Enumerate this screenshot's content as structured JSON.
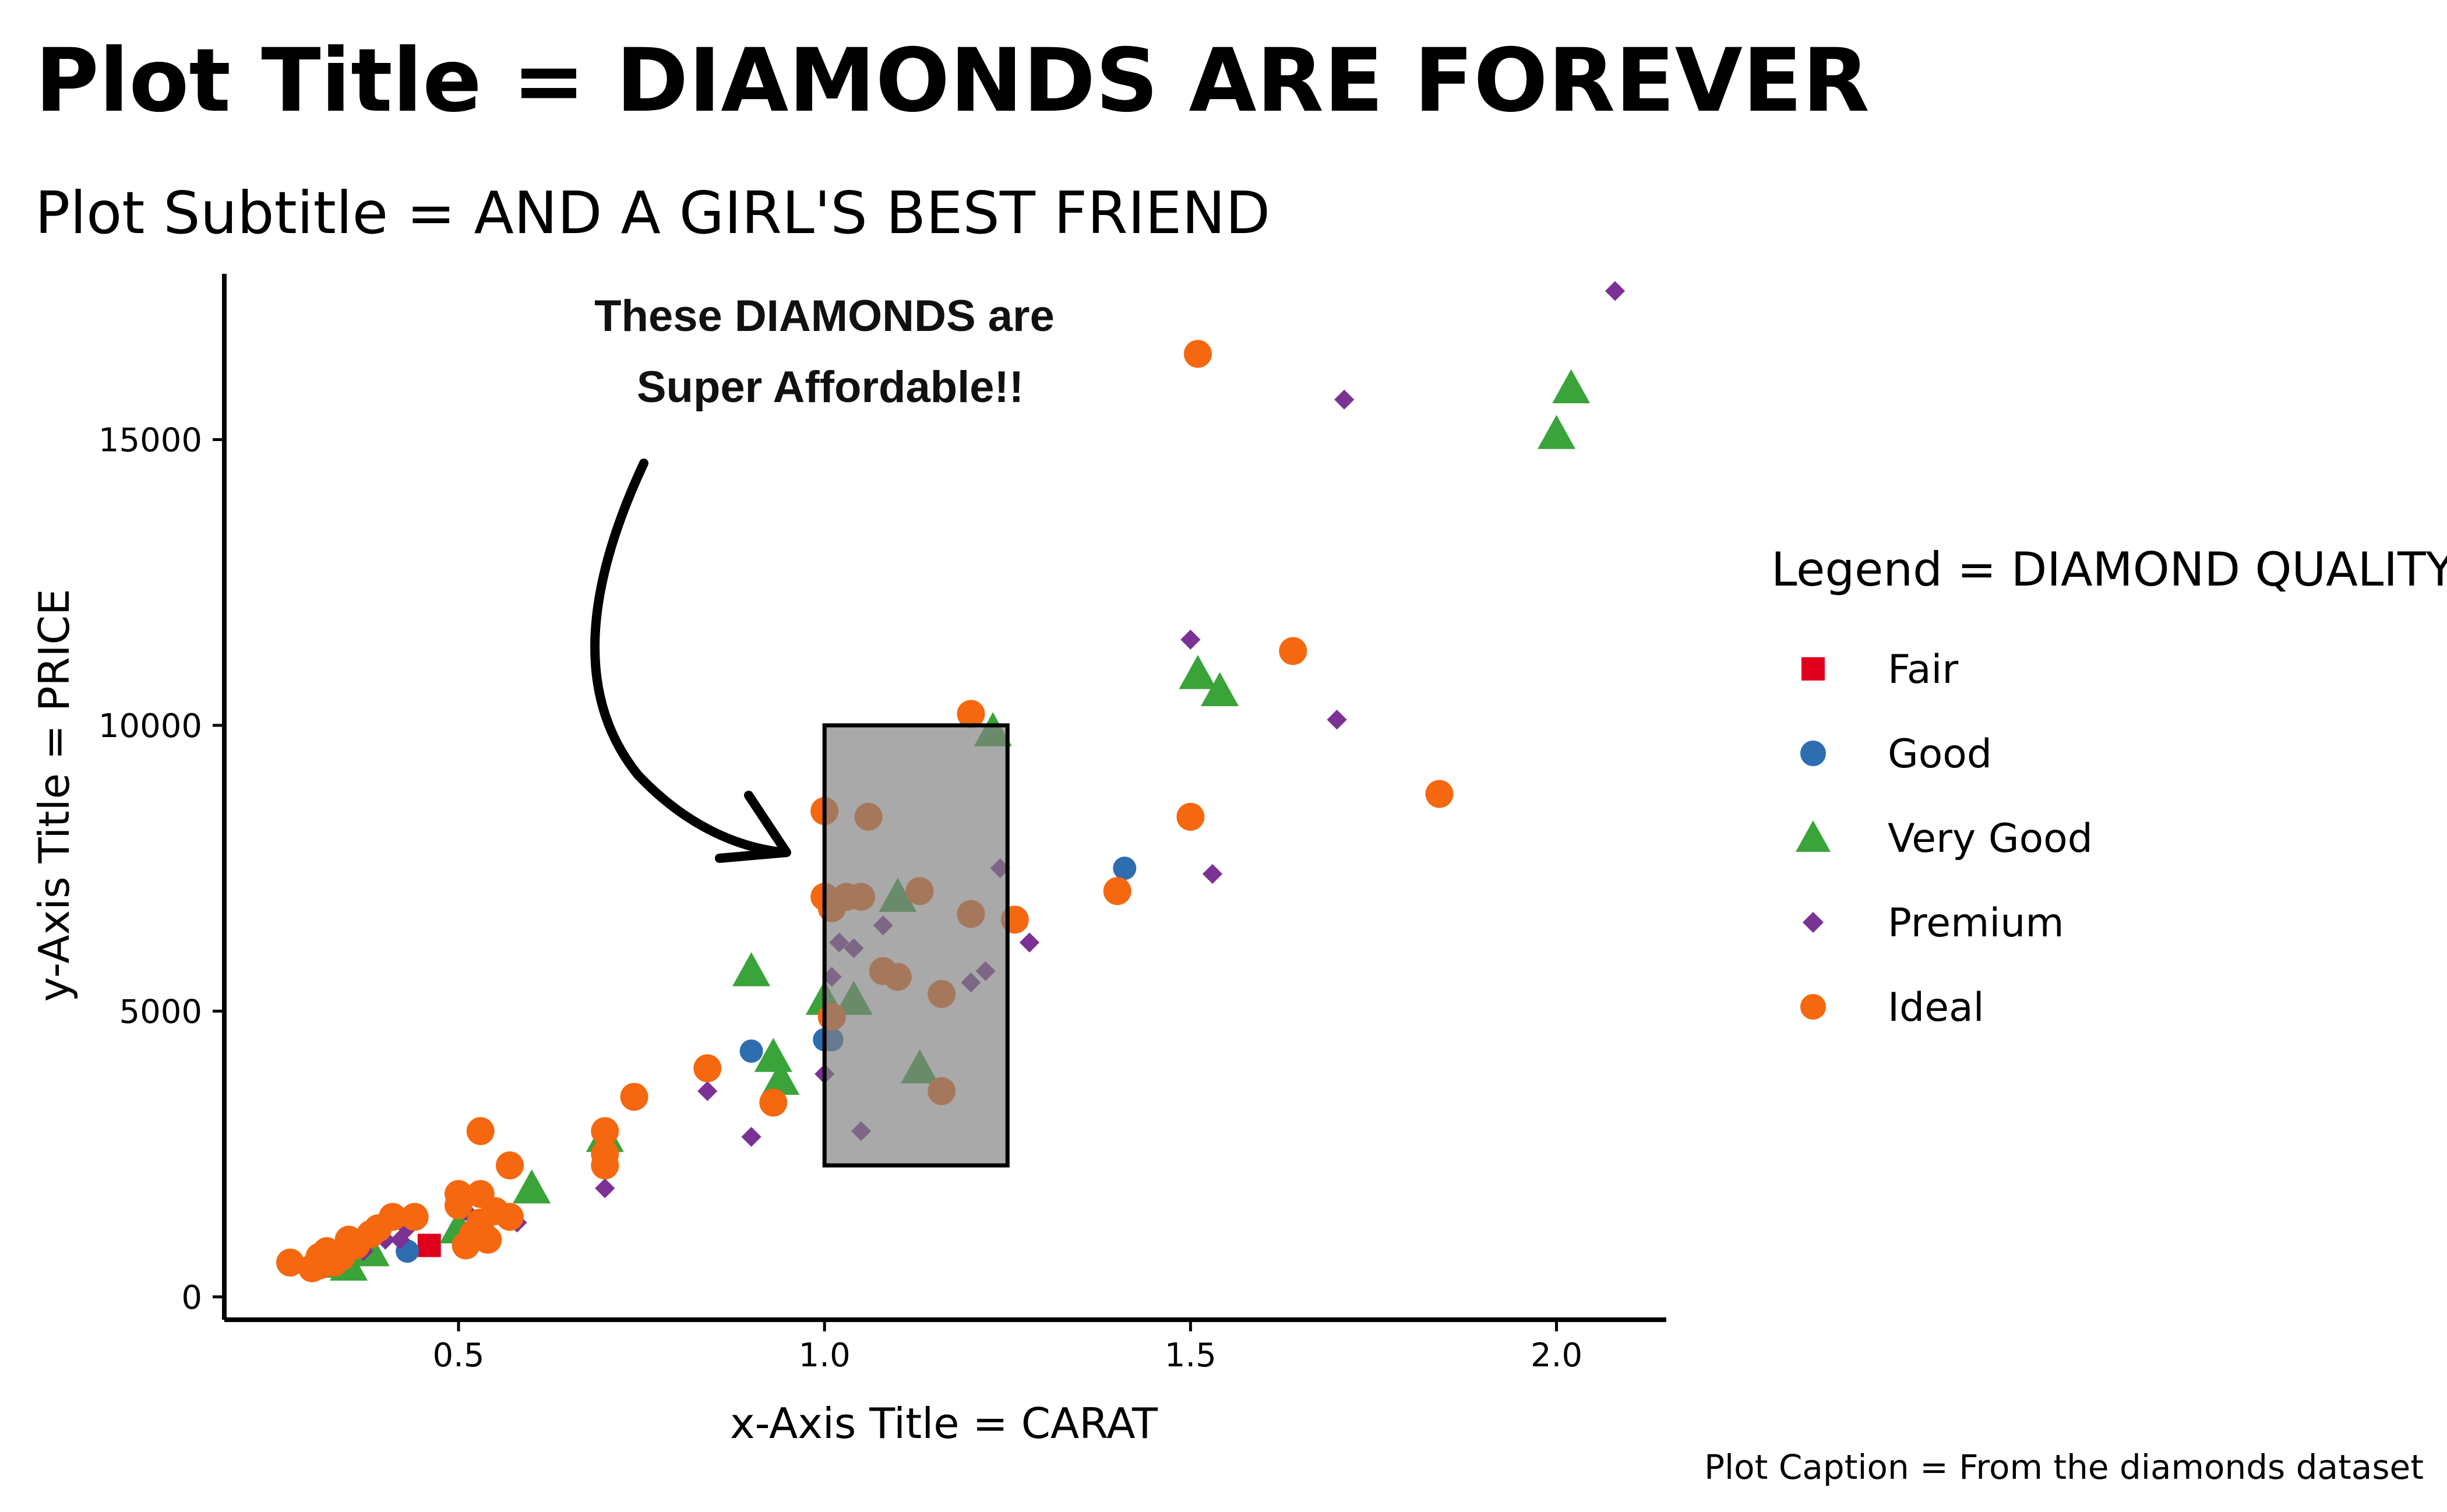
{
  "chart_data": {
    "type": "scatter",
    "title": "Plot Title = DIAMONDS ARE FOREVER",
    "subtitle": "Plot Subtitle = AND A GIRL'S BEST FRIEND",
    "xlabel": "x-Axis Title = CARAT",
    "ylabel": "y-Axis Title = PRICE",
    "caption": "Plot Caption = From the diamonds dataset",
    "xlim": [
      0.18,
      2.15
    ],
    "ylim": [
      -400,
      17900
    ],
    "x_ticks": [
      {
        "value": 0.5,
        "label": "0.5"
      },
      {
        "value": 1.0,
        "label": "1.0"
      },
      {
        "value": 1.5,
        "label": "1.5"
      },
      {
        "value": 2.0,
        "label": "2.0"
      }
    ],
    "y_ticks": [
      {
        "value": 0,
        "label": "0"
      },
      {
        "value": 5000,
        "label": "5000"
      },
      {
        "value": 10000,
        "label": "10000"
      },
      {
        "value": 15000,
        "label": "15000"
      }
    ],
    "grid": false,
    "legend": {
      "title": "Legend = DIAMOND QUALITY",
      "position": "right"
    },
    "series": [
      {
        "name": "Fair",
        "color": "#e0001b",
        "shape": "square",
        "points": [
          [
            0.46,
            900
          ]
        ]
      },
      {
        "name": "Good",
        "color": "#2e6db0",
        "shape": "circle",
        "points": [
          [
            0.43,
            800
          ],
          [
            0.9,
            4300
          ],
          [
            1.0,
            4500
          ],
          [
            1.01,
            4500
          ],
          [
            1.41,
            7500
          ]
        ]
      },
      {
        "name": "Very Good",
        "color": "#3aa33a",
        "shape": "triangle",
        "points": [
          [
            0.32,
            600
          ],
          [
            0.35,
            550
          ],
          [
            0.38,
            800
          ],
          [
            0.5,
            1200
          ],
          [
            0.6,
            1900
          ],
          [
            0.7,
            2800
          ],
          [
            0.9,
            5700
          ],
          [
            0.93,
            4200
          ],
          [
            0.94,
            3800
          ],
          [
            1.0,
            5200
          ],
          [
            1.04,
            5200
          ],
          [
            1.1,
            7000
          ],
          [
            1.13,
            4000
          ],
          [
            1.23,
            9900
          ],
          [
            1.51,
            10900
          ],
          [
            1.54,
            10600
          ],
          [
            2.0,
            15100
          ],
          [
            2.02,
            15900
          ]
        ]
      },
      {
        "name": "Premium",
        "color": "#7b3294",
        "shape": "diamond",
        "points": [
          [
            0.37,
            800
          ],
          [
            0.4,
            1000
          ],
          [
            0.42,
            1000
          ],
          [
            0.43,
            1200
          ],
          [
            0.51,
            1500
          ],
          [
            0.52,
            1800
          ],
          [
            0.58,
            1300
          ],
          [
            0.7,
            1900
          ],
          [
            0.84,
            3600
          ],
          [
            0.9,
            2800
          ],
          [
            1.0,
            3900
          ],
          [
            1.01,
            5600
          ],
          [
            1.02,
            6200
          ],
          [
            1.04,
            6100
          ],
          [
            1.05,
            2900
          ],
          [
            1.08,
            6500
          ],
          [
            1.2,
            5500
          ],
          [
            1.22,
            5700
          ],
          [
            1.24,
            7500
          ],
          [
            1.28,
            6200
          ],
          [
            1.5,
            11500
          ],
          [
            1.53,
            7400
          ],
          [
            1.7,
            10100
          ],
          [
            1.71,
            15700
          ],
          [
            2.08,
            17600
          ]
        ]
      },
      {
        "name": "Ideal",
        "color": "#f5680f",
        "shape": "circle",
        "points": [
          [
            0.27,
            600
          ],
          [
            0.3,
            500
          ],
          [
            0.31,
            700
          ],
          [
            0.31,
            550
          ],
          [
            0.32,
            800
          ],
          [
            0.33,
            600
          ],
          [
            0.34,
            700
          ],
          [
            0.35,
            1000
          ],
          [
            0.36,
            900
          ],
          [
            0.38,
            1100
          ],
          [
            0.39,
            1200
          ],
          [
            0.41,
            1400
          ],
          [
            0.44,
            1400
          ],
          [
            0.5,
            1600
          ],
          [
            0.5,
            1800
          ],
          [
            0.51,
            900
          ],
          [
            0.52,
            1100
          ],
          [
            0.53,
            1300
          ],
          [
            0.53,
            1800
          ],
          [
            0.54,
            1000
          ],
          [
            0.55,
            1500
          ],
          [
            0.53,
            2900
          ],
          [
            0.57,
            2300
          ],
          [
            0.57,
            1400
          ],
          [
            0.7,
            2900
          ],
          [
            0.7,
            2500
          ],
          [
            0.7,
            2300
          ],
          [
            0.74,
            3500
          ],
          [
            0.84,
            4000
          ],
          [
            0.93,
            3400
          ],
          [
            1.0,
            8500
          ],
          [
            1.0,
            7000
          ],
          [
            1.01,
            6800
          ],
          [
            1.01,
            4900
          ],
          [
            1.03,
            7000
          ],
          [
            1.05,
            7000
          ],
          [
            1.06,
            8400
          ],
          [
            1.08,
            5700
          ],
          [
            1.1,
            5600
          ],
          [
            1.13,
            7100
          ],
          [
            1.16,
            5300
          ],
          [
            1.16,
            3600
          ],
          [
            1.2,
            10200
          ],
          [
            1.2,
            6700
          ],
          [
            1.26,
            6600
          ],
          [
            1.4,
            7100
          ],
          [
            1.5,
            8400
          ],
          [
            1.51,
            16500
          ],
          [
            1.64,
            11300
          ],
          [
            1.84,
            8800
          ]
        ]
      }
    ],
    "highlight_region": {
      "x": [
        1.0,
        1.25
      ],
      "y": [
        2300,
        10000
      ]
    },
    "annotation": {
      "lines": [
        "These DIAMONDS are",
        "Super Affordable!!"
      ]
    }
  }
}
